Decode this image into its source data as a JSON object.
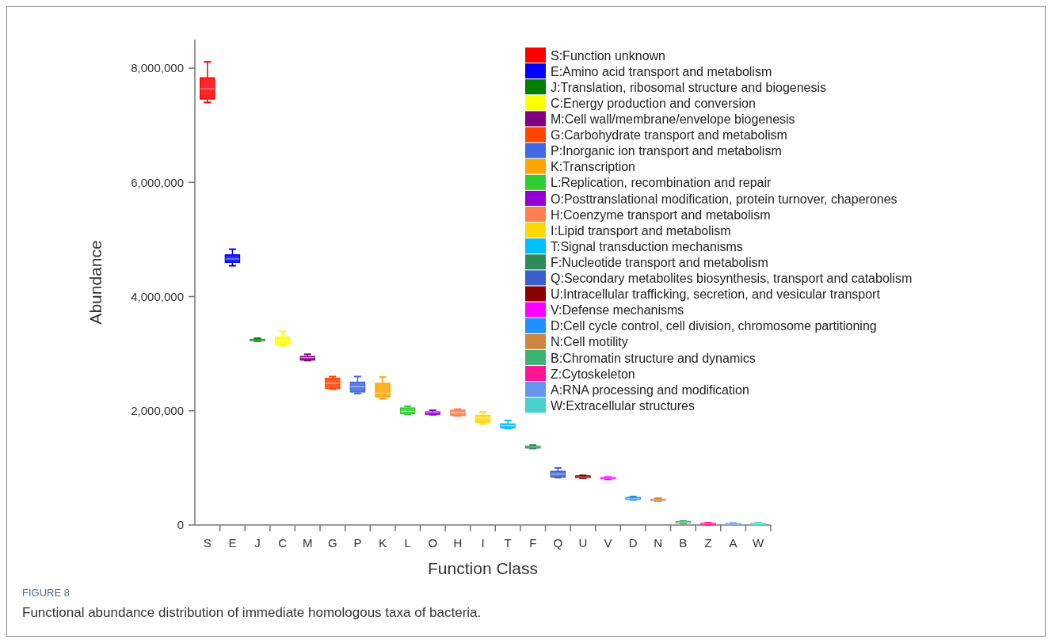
{
  "chart_data": {
    "type": "box",
    "xlabel": "Function Class",
    "ylabel": "Abundance",
    "categories": [
      "S",
      "E",
      "J",
      "C",
      "M",
      "G",
      "P",
      "K",
      "L",
      "O",
      "H",
      "I",
      "T",
      "F",
      "Q",
      "U",
      "V",
      "D",
      "N",
      "B",
      "Z",
      "A",
      "W"
    ],
    "ylim": [
      0,
      8500000
    ],
    "yticks": [
      {
        "value": 0,
        "label": "0"
      },
      {
        "value": 2000000,
        "label": "2,000,000"
      },
      {
        "value": 4000000,
        "label": "4,000,000"
      },
      {
        "value": 6000000,
        "label": "6,000,000"
      },
      {
        "value": 8000000,
        "label": "8,000,000"
      }
    ],
    "grid": false,
    "legend": "top right",
    "annotations": [
      "FIGURE 8",
      "Functional abundance distribution of immediate homologous taxa of bacteria."
    ],
    "series": [
      {
        "name": "S:Function unknown",
        "color": "#ff0000",
        "boxes": [
          {
            "low": 7400000,
            "q1": 7460000,
            "median": 7640000,
            "q3": 7830000,
            "high": 8110000
          },
          null,
          null,
          null,
          null,
          null,
          null,
          null,
          null,
          null,
          null,
          null,
          null,
          null,
          null,
          null,
          null,
          null,
          null,
          null,
          null,
          null,
          null
        ]
      },
      {
        "name": "E:Amino acid transport and metabolism",
        "color": "#0000ff",
        "boxes": [
          null,
          {
            "low": 4540000,
            "q1": 4600000,
            "median": 4660000,
            "q3": 4730000,
            "high": 4830000
          },
          null,
          null,
          null,
          null,
          null,
          null,
          null,
          null,
          null,
          null,
          null,
          null,
          null,
          null,
          null,
          null,
          null,
          null,
          null,
          null,
          null
        ]
      },
      {
        "name": "J:Translation, ribosomal structure and biogenesis",
        "color": "#008000",
        "boxes": [
          null,
          null,
          {
            "low": 3220000,
            "q1": 3230000,
            "median": 3240000,
            "q3": 3250000,
            "high": 3270000
          },
          null,
          null,
          null,
          null,
          null,
          null,
          null,
          null,
          null,
          null,
          null,
          null,
          null,
          null,
          null,
          null,
          null,
          null,
          null,
          null
        ]
      },
      {
        "name": "C:Energy production and conversion",
        "color": "#ffff00",
        "boxes": [
          null,
          null,
          null,
          {
            "low": 3140000,
            "q1": 3160000,
            "median": 3220000,
            "q3": 3290000,
            "high": 3390000
          },
          null,
          null,
          null,
          null,
          null,
          null,
          null,
          null,
          null,
          null,
          null,
          null,
          null,
          null,
          null,
          null,
          null,
          null,
          null
        ]
      },
      {
        "name": "M:Cell wall/membrane/envelope biogenesis",
        "color": "#800080",
        "boxes": [
          null,
          null,
          null,
          null,
          {
            "low": 2880000,
            "q1": 2890000,
            "median": 2930000,
            "q3": 2950000,
            "high": 2990000
          },
          null,
          null,
          null,
          null,
          null,
          null,
          null,
          null,
          null,
          null,
          null,
          null,
          null,
          null,
          null,
          null,
          null,
          null
        ]
      },
      {
        "name": "G:Carbohydrate transport and metabolism",
        "color": "#ff4500",
        "boxes": [
          null,
          null,
          null,
          null,
          null,
          {
            "low": 2380000,
            "q1": 2390000,
            "median": 2480000,
            "q3": 2570000,
            "high": 2600000
          },
          null,
          null,
          null,
          null,
          null,
          null,
          null,
          null,
          null,
          null,
          null,
          null,
          null,
          null,
          null,
          null,
          null
        ]
      },
      {
        "name": "P:Inorganic ion transport and metabolism",
        "color": "#4169e1",
        "boxes": [
          null,
          null,
          null,
          null,
          null,
          null,
          {
            "low": 2300000,
            "q1": 2330000,
            "median": 2420000,
            "q3": 2500000,
            "high": 2600000
          },
          null,
          null,
          null,
          null,
          null,
          null,
          null,
          null,
          null,
          null,
          null,
          null,
          null,
          null,
          null,
          null
        ]
      },
      {
        "name": "K:Transcription",
        "color": "#ffa500",
        "boxes": [
          null,
          null,
          null,
          null,
          null,
          null,
          null,
          {
            "low": 2210000,
            "q1": 2240000,
            "median": 2310000,
            "q3": 2480000,
            "high": 2590000
          },
          null,
          null,
          null,
          null,
          null,
          null,
          null,
          null,
          null,
          null,
          null,
          null,
          null,
          null,
          null
        ]
      },
      {
        "name": "L:Replication, recombination and repair",
        "color": "#32cd32",
        "boxes": [
          null,
          null,
          null,
          null,
          null,
          null,
          null,
          null,
          {
            "low": 1940000,
            "q1": 1950000,
            "median": 1990000,
            "q3": 2050000,
            "high": 2080000
          },
          null,
          null,
          null,
          null,
          null,
          null,
          null,
          null,
          null,
          null,
          null,
          null,
          null,
          null
        ]
      },
      {
        "name": "O:Posttranslational modification, protein turnover, chaperones",
        "color": "#9400d3",
        "boxes": [
          null,
          null,
          null,
          null,
          null,
          null,
          null,
          null,
          null,
          {
            "low": 1930000,
            "q1": 1940000,
            "median": 1970000,
            "q3": 1980000,
            "high": 2010000
          },
          null,
          null,
          null,
          null,
          null,
          null,
          null,
          null,
          null,
          null,
          null,
          null,
          null
        ]
      },
      {
        "name": "H:Coenzyme transport and metabolism",
        "color": "#ff7f50",
        "boxes": [
          null,
          null,
          null,
          null,
          null,
          null,
          null,
          null,
          null,
          null,
          {
            "low": 1910000,
            "q1": 1920000,
            "median": 1970000,
            "q3": 2010000,
            "high": 2030000
          },
          null,
          null,
          null,
          null,
          null,
          null,
          null,
          null,
          null,
          null,
          null,
          null
        ]
      },
      {
        "name": "I:Lipid transport and metabolism",
        "color": "#ffd700",
        "boxes": [
          null,
          null,
          null,
          null,
          null,
          null,
          null,
          null,
          null,
          null,
          null,
          {
            "low": 1770000,
            "q1": 1800000,
            "median": 1870000,
            "q3": 1920000,
            "high": 1980000
          },
          null,
          null,
          null,
          null,
          null,
          null,
          null,
          null,
          null,
          null,
          null
        ]
      },
      {
        "name": "T:Signal transduction mechanisms",
        "color": "#00bfff",
        "boxes": [
          null,
          null,
          null,
          null,
          null,
          null,
          null,
          null,
          null,
          null,
          null,
          null,
          {
            "low": 1690000,
            "q1": 1700000,
            "median": 1740000,
            "q3": 1770000,
            "high": 1830000
          },
          null,
          null,
          null,
          null,
          null,
          null,
          null,
          null,
          null,
          null
        ]
      },
      {
        "name": "F:Nucleotide transport and metabolism",
        "color": "#2e8b57",
        "boxes": [
          null,
          null,
          null,
          null,
          null,
          null,
          null,
          null,
          null,
          null,
          null,
          null,
          null,
          {
            "low": 1340000,
            "q1": 1350000,
            "median": 1370000,
            "q3": 1380000,
            "high": 1400000
          },
          null,
          null,
          null,
          null,
          null,
          null,
          null,
          null,
          null
        ]
      },
      {
        "name": "Q:Secondary metabolites biosynthesis, transport and catabolism",
        "color": "#3a5fcd",
        "boxes": [
          null,
          null,
          null,
          null,
          null,
          null,
          null,
          null,
          null,
          null,
          null,
          null,
          null,
          null,
          {
            "low": 830000,
            "q1": 840000,
            "median": 890000,
            "q3": 940000,
            "high": 1000000
          },
          null,
          null,
          null,
          null,
          null,
          null,
          null,
          null
        ]
      },
      {
        "name": "U:Intracellular trafficking, secretion, and vesicular transport",
        "color": "#8b0000",
        "boxes": [
          null,
          null,
          null,
          null,
          null,
          null,
          null,
          null,
          null,
          null,
          null,
          null,
          null,
          null,
          null,
          {
            "low": 820000,
            "q1": 830000,
            "median": 840000,
            "q3": 860000,
            "high": 870000
          },
          null,
          null,
          null,
          null,
          null,
          null,
          null
        ]
      },
      {
        "name": "V:Defense mechanisms",
        "color": "#ff00ff",
        "boxes": [
          null,
          null,
          null,
          null,
          null,
          null,
          null,
          null,
          null,
          null,
          null,
          null,
          null,
          null,
          null,
          null,
          {
            "low": 800000,
            "q1": 810000,
            "median": 820000,
            "q3": 830000,
            "high": 840000
          },
          null,
          null,
          null,
          null,
          null,
          null
        ]
      },
      {
        "name": "D:Cell cycle control, cell division, chromosome partitioning",
        "color": "#1e90ff",
        "boxes": [
          null,
          null,
          null,
          null,
          null,
          null,
          null,
          null,
          null,
          null,
          null,
          null,
          null,
          null,
          null,
          null,
          null,
          {
            "low": 440000,
            "q1": 450000,
            "median": 460000,
            "q3": 480000,
            "high": 500000
          },
          null,
          null,
          null,
          null,
          null
        ]
      },
      {
        "name": "N:Cell motility",
        "color": "#cd853f",
        "boxes": [
          null,
          null,
          null,
          null,
          null,
          null,
          null,
          null,
          null,
          null,
          null,
          null,
          null,
          null,
          null,
          null,
          null,
          null,
          {
            "low": 420000,
            "q1": 430000,
            "median": 440000,
            "q3": 450000,
            "high": 470000
          },
          null,
          null,
          null,
          null
        ]
      },
      {
        "name": "B:Chromatin structure and dynamics",
        "color": "#3cb371",
        "boxes": [
          null,
          null,
          null,
          null,
          null,
          null,
          null,
          null,
          null,
          null,
          null,
          null,
          null,
          null,
          null,
          null,
          null,
          null,
          null,
          {
            "low": 30000,
            "q1": 40000,
            "median": 50000,
            "q3": 60000,
            "high": 70000
          },
          null,
          null,
          null
        ]
      },
      {
        "name": "Z:Cytoskeleton",
        "color": "#ff1493",
        "boxes": [
          null,
          null,
          null,
          null,
          null,
          null,
          null,
          null,
          null,
          null,
          null,
          null,
          null,
          null,
          null,
          null,
          null,
          null,
          null,
          null,
          {
            "low": 0,
            "q1": 10000,
            "median": 20000,
            "q3": 30000,
            "high": 40000
          },
          null,
          null
        ]
      },
      {
        "name": "A:RNA processing and modification",
        "color": "#6495ed",
        "boxes": [
          null,
          null,
          null,
          null,
          null,
          null,
          null,
          null,
          null,
          null,
          null,
          null,
          null,
          null,
          null,
          null,
          null,
          null,
          null,
          null,
          null,
          {
            "low": 5000,
            "q1": 10000,
            "median": 15000,
            "q3": 25000,
            "high": 35000
          },
          null
        ]
      },
      {
        "name": "W:Extracellular structures",
        "color": "#48d1cc",
        "boxes": [
          null,
          null,
          null,
          null,
          null,
          null,
          null,
          null,
          null,
          null,
          null,
          null,
          null,
          null,
          null,
          null,
          null,
          null,
          null,
          null,
          null,
          null,
          {
            "low": 0,
            "q1": 10000,
            "median": 20000,
            "q3": 30000,
            "high": 40000
          }
        ]
      }
    ]
  }
}
